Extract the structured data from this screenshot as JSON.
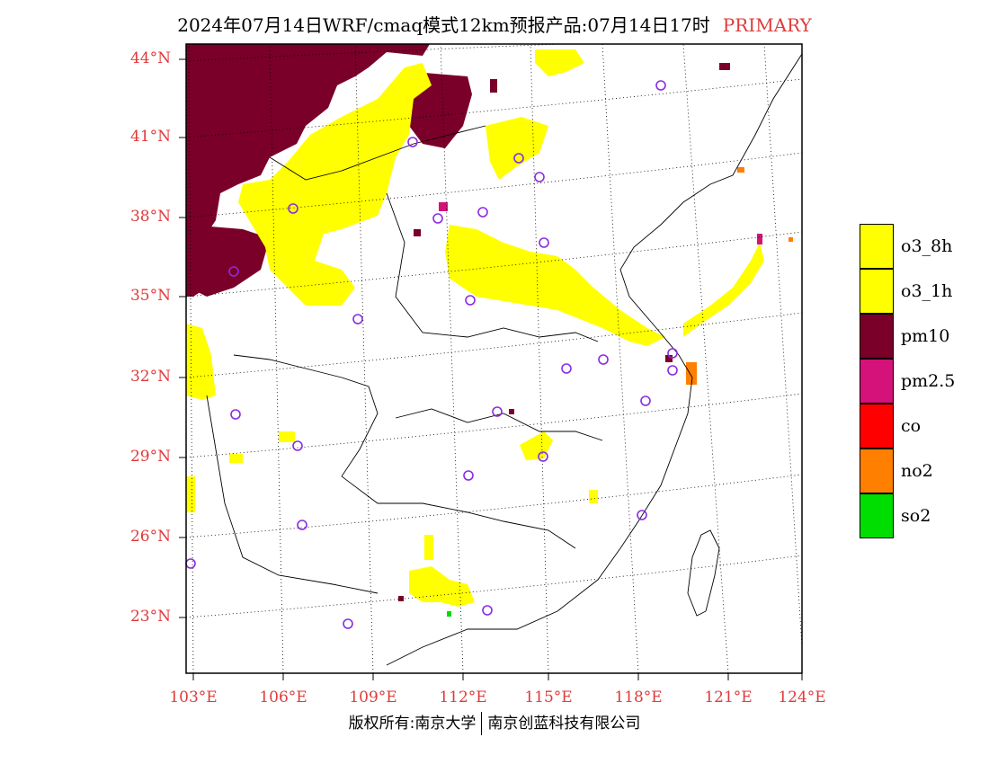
{
  "header": {
    "title": "2024年07月14日WRF/cmaq模式12km预报产品:07月14日17时",
    "tag": "PRIMARY"
  },
  "map": {
    "lat_labels": [
      "44°N",
      "41°N",
      "38°N",
      "35°N",
      "32°N",
      "29°N",
      "26°N",
      "23°N"
    ],
    "lon_labels": [
      "103°E",
      "106°E",
      "109°E",
      "112°E",
      "115°E",
      "118°E",
      "121°E",
      "124°E"
    ],
    "colors": {
      "o3_8h": "#ffff00",
      "o3_1h": "#ffff00",
      "pm10": "#7a0029",
      "pm25": "#d4127a",
      "co": "#ff0000",
      "no2": "#ff7f00",
      "so2": "#00dd00",
      "grid": "#000000",
      "station": "#8a2be2",
      "axis_label": "#e03a3a"
    }
  },
  "legend": {
    "items": [
      {
        "label": "o3_8h",
        "color": "#ffff00"
      },
      {
        "label": "o3_1h",
        "color": "#ffff00"
      },
      {
        "label": "pm10",
        "color": "#7a0029"
      },
      {
        "label": "pm2.5",
        "color": "#d4127a"
      },
      {
        "label": "co",
        "color": "#ff0000"
      },
      {
        "label": "no2",
        "color": "#ff7f00"
      },
      {
        "label": "so2",
        "color": "#00dd00"
      }
    ]
  },
  "footer": {
    "left": "版权所有:南京大学",
    "right": "南京创蓝科技有限公司"
  }
}
